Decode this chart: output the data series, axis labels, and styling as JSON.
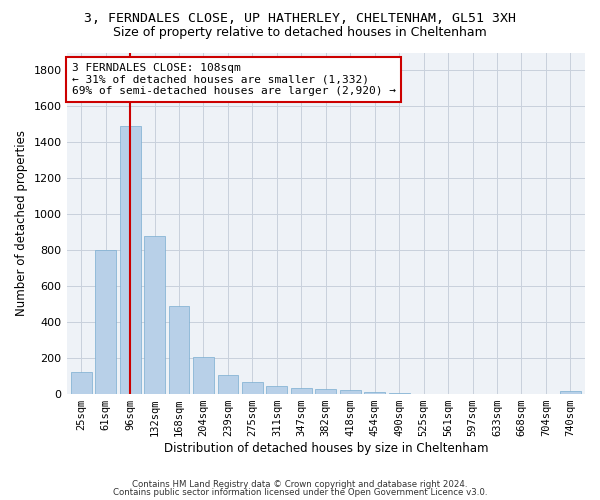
{
  "title_line1": "3, FERNDALES CLOSE, UP HATHERLEY, CHELTENHAM, GL51 3XH",
  "title_line2": "Size of property relative to detached houses in Cheltenham",
  "xlabel": "Distribution of detached houses by size in Cheltenham",
  "ylabel": "Number of detached properties",
  "categories": [
    "25sqm",
    "61sqm",
    "96sqm",
    "132sqm",
    "168sqm",
    "204sqm",
    "239sqm",
    "275sqm",
    "311sqm",
    "347sqm",
    "382sqm",
    "418sqm",
    "454sqm",
    "490sqm",
    "525sqm",
    "561sqm",
    "597sqm",
    "633sqm",
    "668sqm",
    "704sqm",
    "740sqm"
  ],
  "values": [
    125,
    800,
    1490,
    880,
    490,
    205,
    105,
    65,
    45,
    35,
    30,
    20,
    10,
    5,
    3,
    2,
    1,
    1,
    1,
    1,
    15
  ],
  "bar_color": "#b8d0e8",
  "bar_edgecolor": "#7aadd0",
  "vline_x": 2,
  "vline_color": "#cc0000",
  "annotation_text": "3 FERNDALES CLOSE: 108sqm\n← 31% of detached houses are smaller (1,332)\n69% of semi-detached houses are larger (2,920) →",
  "annotation_box_color": "#ffffff",
  "annotation_box_edgecolor": "#cc0000",
  "ylim": [
    0,
    1900
  ],
  "yticks": [
    0,
    200,
    400,
    600,
    800,
    1000,
    1200,
    1400,
    1600,
    1800
  ],
  "footnote1": "Contains HM Land Registry data © Crown copyright and database right 2024.",
  "footnote2": "Contains public sector information licensed under the Open Government Licence v3.0.",
  "background_color": "#eef2f7",
  "grid_color": "#c8d0dc",
  "title_fontsize": 9.5,
  "subtitle_fontsize": 9,
  "axis_label_fontsize": 8.5,
  "tick_fontsize": 7.5,
  "annotation_fontsize": 8
}
